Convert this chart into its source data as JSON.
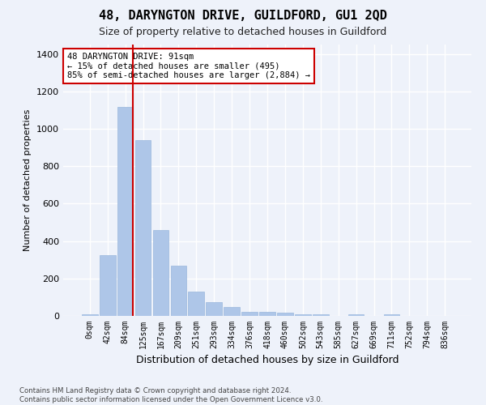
{
  "title": "48, DARYNGTON DRIVE, GUILDFORD, GU1 2QD",
  "subtitle": "Size of property relative to detached houses in Guildford",
  "xlabel": "Distribution of detached houses by size in Guildford",
  "ylabel": "Number of detached properties",
  "bar_values": [
    8,
    325,
    1115,
    940,
    460,
    270,
    130,
    75,
    48,
    20,
    22,
    18,
    10,
    10,
    0,
    10,
    0,
    10,
    0,
    0,
    0
  ],
  "bar_labels": [
    "0sqm",
    "42sqm",
    "84sqm",
    "125sqm",
    "167sqm",
    "209sqm",
    "251sqm",
    "293sqm",
    "334sqm",
    "376sqm",
    "418sqm",
    "460sqm",
    "502sqm",
    "543sqm",
    "585sqm",
    "627sqm",
    "669sqm",
    "711sqm",
    "752sqm",
    "794sqm",
    "836sqm"
  ],
  "bar_color": "#aec6e8",
  "bar_edge_color": "#9ab8dc",
  "vline_color": "#cc0000",
  "vline_pos": 2.45,
  "annotation_text": "48 DARYNGTON DRIVE: 91sqm\n← 15% of detached houses are smaller (495)\n85% of semi-detached houses are larger (2,884) →",
  "annotation_box_color": "#ffffff",
  "annotation_box_edge": "#cc0000",
  "ylim": [
    0,
    1450
  ],
  "yticks": [
    0,
    200,
    400,
    600,
    800,
    1000,
    1200,
    1400
  ],
  "background_color": "#eef2fa",
  "grid_color": "#ffffff",
  "footer": "Contains HM Land Registry data © Crown copyright and database right 2024.\nContains public sector information licensed under the Open Government Licence v3.0."
}
